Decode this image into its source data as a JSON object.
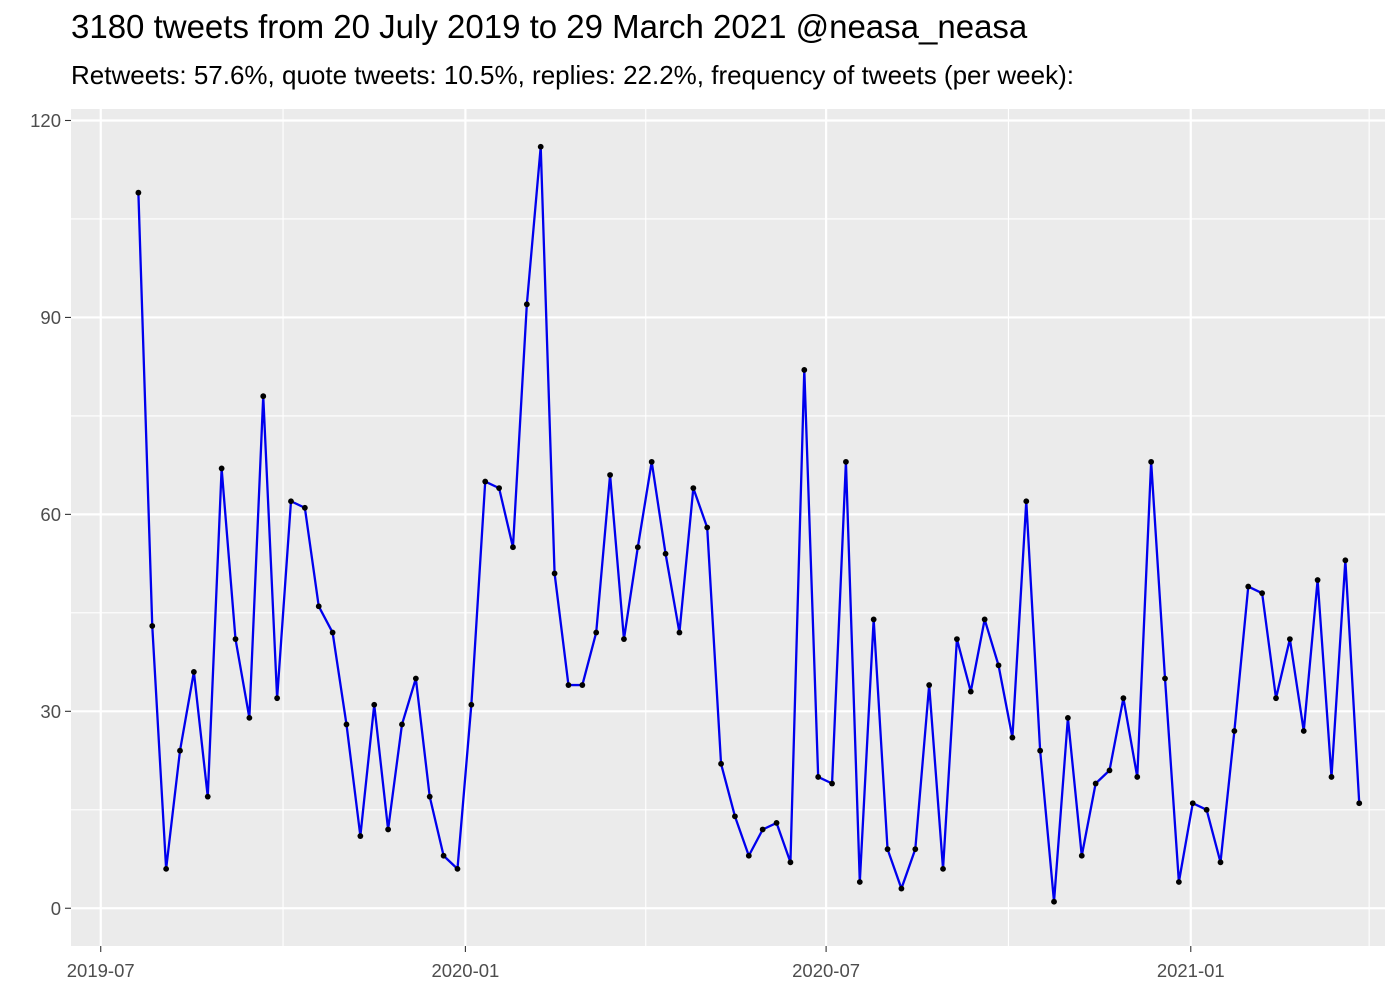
{
  "title": "3180 tweets from 20 July 2019 to 29 March 2021 @neasa_neasa",
  "subtitle": "Retweets: 57.6%, quote tweets: 10.5%, replies: 22.2%, frequency of tweets (per week):",
  "chart_data": {
    "type": "line",
    "title": "3180 tweets from 20 July 2019 to 29 March 2021 @neasa_neasa",
    "subtitle": "Retweets: 57.6%, quote tweets: 10.5%, replies: 22.2%, frequency of tweets (per week):",
    "xlabel": "",
    "ylabel": "",
    "x_type": "date",
    "xlim": [
      "2019-06-16",
      "2021-04-09"
    ],
    "ylim": [
      -5.75,
      121.75
    ],
    "x_ticks": [
      "2019-07-01",
      "2020-01-01",
      "2020-07-01",
      "2021-01-01"
    ],
    "x_tick_labels": [
      "2019-07",
      "2020-01",
      "2020-07",
      "2021-01"
    ],
    "x_minor_ticks": [
      "2019-10-01",
      "2020-04-01",
      "2020-10-01",
      "2021-04-01"
    ],
    "y_ticks": [
      0,
      30,
      60,
      90,
      120
    ],
    "y_tick_labels": [
      "0",
      "30",
      "60",
      "90",
      "120"
    ],
    "y_minor_ticks": [
      15,
      45,
      75,
      105
    ],
    "grid": true,
    "colors": {
      "panel_background": "#ebebeb",
      "grid": "#ffffff",
      "line": "#0000ee",
      "points": "#000000",
      "tick_label": "#4d4d4d",
      "tick_mark": "#333333"
    },
    "series": [
      {
        "x": [
          "2019-07-20",
          "2019-07-27",
          "2019-08-03",
          "2019-08-10",
          "2019-08-17",
          "2019-08-24",
          "2019-08-31",
          "2019-09-07",
          "2019-09-14",
          "2019-09-21",
          "2019-09-28",
          "2019-10-05",
          "2019-10-12",
          "2019-10-19",
          "2019-10-26",
          "2019-11-02",
          "2019-11-09",
          "2019-11-16",
          "2019-11-23",
          "2019-11-30",
          "2019-12-07",
          "2019-12-14",
          "2019-12-21",
          "2019-12-28",
          "2020-01-04",
          "2020-01-11",
          "2020-01-18",
          "2020-01-25",
          "2020-02-01",
          "2020-02-08",
          "2020-02-15",
          "2020-02-22",
          "2020-02-29",
          "2020-03-07",
          "2020-03-14",
          "2020-03-21",
          "2020-03-28",
          "2020-04-04",
          "2020-04-11",
          "2020-04-18",
          "2020-04-25",
          "2020-05-02",
          "2020-05-09",
          "2020-05-16",
          "2020-05-23",
          "2020-05-30",
          "2020-06-06",
          "2020-06-13",
          "2020-06-20",
          "2020-06-27",
          "2020-07-04",
          "2020-07-11",
          "2020-07-18",
          "2020-07-25",
          "2020-08-01",
          "2020-08-08",
          "2020-08-15",
          "2020-08-22",
          "2020-08-29",
          "2020-09-05",
          "2020-09-12",
          "2020-09-19",
          "2020-09-26",
          "2020-10-03",
          "2020-10-10",
          "2020-10-17",
          "2020-10-24",
          "2020-10-31",
          "2020-11-07",
          "2020-11-14",
          "2020-11-21",
          "2020-11-28",
          "2020-12-05",
          "2020-12-12",
          "2020-12-19",
          "2020-12-26",
          "2021-01-02",
          "2021-01-09",
          "2021-01-16",
          "2021-01-23",
          "2021-01-30",
          "2021-02-06",
          "2021-02-13",
          "2021-02-20",
          "2021-02-27",
          "2021-03-06",
          "2021-03-13",
          "2021-03-20",
          "2021-03-27"
        ],
        "y": [
          109,
          43,
          6,
          24,
          36,
          17,
          67,
          41,
          29,
          78,
          32,
          62,
          61,
          46,
          42,
          28,
          11,
          31,
          12,
          28,
          35,
          17,
          8,
          6,
          31,
          65,
          64,
          55,
          92,
          116,
          51,
          34,
          34,
          42,
          66,
          41,
          55,
          68,
          54,
          42,
          64,
          58,
          22,
          14,
          8,
          12,
          13,
          7,
          82,
          20,
          19,
          68,
          4,
          44,
          9,
          3,
          9,
          34,
          6,
          41,
          33,
          44,
          37,
          26,
          62,
          24,
          1,
          29,
          8,
          19,
          21,
          32,
          20,
          68,
          35,
          4,
          16,
          15,
          7,
          27,
          49,
          48,
          32,
          41,
          27,
          50,
          20,
          53,
          16
        ]
      }
    ]
  }
}
